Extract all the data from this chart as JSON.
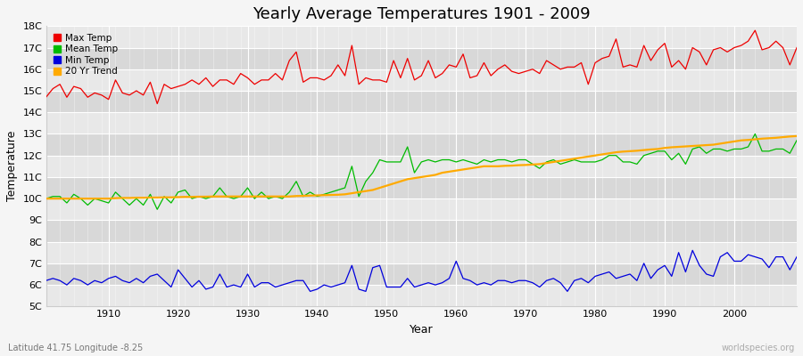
{
  "title": "Yearly Average Temperatures 1901 - 2009",
  "xlabel": "Year",
  "ylabel": "Temperature",
  "subtitle_left": "Latitude 41.75 Longitude -8.25",
  "subtitle_right": "worldspecies.org",
  "years": [
    1901,
    1902,
    1903,
    1904,
    1905,
    1906,
    1907,
    1908,
    1909,
    1910,
    1911,
    1912,
    1913,
    1914,
    1915,
    1916,
    1917,
    1918,
    1919,
    1920,
    1921,
    1922,
    1923,
    1924,
    1925,
    1926,
    1927,
    1928,
    1929,
    1930,
    1931,
    1932,
    1933,
    1934,
    1935,
    1936,
    1937,
    1938,
    1939,
    1940,
    1941,
    1942,
    1943,
    1944,
    1945,
    1946,
    1947,
    1948,
    1949,
    1950,
    1951,
    1952,
    1953,
    1954,
    1955,
    1956,
    1957,
    1958,
    1959,
    1960,
    1961,
    1962,
    1963,
    1964,
    1965,
    1966,
    1967,
    1968,
    1969,
    1970,
    1971,
    1972,
    1973,
    1974,
    1975,
    1976,
    1977,
    1978,
    1979,
    1980,
    1981,
    1982,
    1983,
    1984,
    1985,
    1986,
    1987,
    1988,
    1989,
    1990,
    1991,
    1992,
    1993,
    1994,
    1995,
    1996,
    1997,
    1998,
    1999,
    2000,
    2001,
    2002,
    2003,
    2004,
    2005,
    2006,
    2007,
    2008,
    2009
  ],
  "max_temp": [
    14.7,
    15.1,
    15.3,
    14.7,
    15.2,
    15.1,
    14.7,
    14.9,
    14.8,
    14.6,
    15.5,
    14.9,
    14.8,
    15.0,
    14.8,
    15.4,
    14.4,
    15.3,
    15.1,
    15.2,
    15.3,
    15.5,
    15.3,
    15.6,
    15.2,
    15.5,
    15.5,
    15.3,
    15.8,
    15.6,
    15.3,
    15.5,
    15.5,
    15.8,
    15.5,
    16.4,
    16.8,
    15.4,
    15.6,
    15.6,
    15.5,
    15.7,
    16.2,
    15.7,
    17.1,
    15.3,
    15.6,
    15.5,
    15.5,
    15.4,
    16.4,
    15.6,
    16.5,
    15.5,
    15.7,
    16.4,
    15.6,
    15.8,
    16.2,
    16.1,
    16.7,
    15.6,
    15.7,
    16.3,
    15.7,
    16.0,
    16.2,
    15.9,
    15.8,
    15.9,
    16.0,
    15.8,
    16.4,
    16.2,
    16.0,
    16.1,
    16.1,
    16.3,
    15.3,
    16.3,
    16.5,
    16.6,
    17.4,
    16.1,
    16.2,
    16.1,
    17.1,
    16.4,
    16.9,
    17.2,
    16.1,
    16.4,
    16.0,
    17.0,
    16.8,
    16.2,
    16.9,
    17.0,
    16.8,
    17.0,
    17.1,
    17.3,
    17.8,
    16.9,
    17.0,
    17.3,
    17.0,
    16.2,
    17.0
  ],
  "mean_temp": [
    10.0,
    10.1,
    10.1,
    9.8,
    10.2,
    10.0,
    9.7,
    10.0,
    9.9,
    9.8,
    10.3,
    10.0,
    9.7,
    10.0,
    9.7,
    10.2,
    9.5,
    10.1,
    9.8,
    10.3,
    10.4,
    10.0,
    10.1,
    10.0,
    10.1,
    10.5,
    10.1,
    10.0,
    10.1,
    10.5,
    10.0,
    10.3,
    10.0,
    10.1,
    10.0,
    10.3,
    10.8,
    10.1,
    10.3,
    10.1,
    10.2,
    10.3,
    10.4,
    10.5,
    11.5,
    10.1,
    10.8,
    11.2,
    11.8,
    11.7,
    11.7,
    11.7,
    12.4,
    11.2,
    11.7,
    11.8,
    11.7,
    11.8,
    11.8,
    11.7,
    11.8,
    11.7,
    11.6,
    11.8,
    11.7,
    11.8,
    11.8,
    11.7,
    11.8,
    11.8,
    11.6,
    11.4,
    11.7,
    11.8,
    11.6,
    11.7,
    11.8,
    11.7,
    11.7,
    11.7,
    11.8,
    12.0,
    12.0,
    11.7,
    11.7,
    11.6,
    12.0,
    12.1,
    12.2,
    12.2,
    11.8,
    12.1,
    11.6,
    12.3,
    12.4,
    12.1,
    12.3,
    12.3,
    12.2,
    12.3,
    12.3,
    12.4,
    13.0,
    12.2,
    12.2,
    12.3,
    12.3,
    12.1,
    12.7
  ],
  "min_temp": [
    6.2,
    6.3,
    6.2,
    6.0,
    6.3,
    6.2,
    6.0,
    6.2,
    6.1,
    6.3,
    6.4,
    6.2,
    6.1,
    6.3,
    6.1,
    6.4,
    6.5,
    6.2,
    5.9,
    6.7,
    6.3,
    5.9,
    6.2,
    5.8,
    5.9,
    6.5,
    5.9,
    6.0,
    5.9,
    6.5,
    5.9,
    6.1,
    6.1,
    5.9,
    6.0,
    6.1,
    6.2,
    6.2,
    5.7,
    5.8,
    6.0,
    5.9,
    6.0,
    6.1,
    6.9,
    5.8,
    5.7,
    6.8,
    6.9,
    5.9,
    5.9,
    5.9,
    6.3,
    5.9,
    6.0,
    6.1,
    6.0,
    6.1,
    6.3,
    7.1,
    6.3,
    6.2,
    6.0,
    6.1,
    6.0,
    6.2,
    6.2,
    6.1,
    6.2,
    6.2,
    6.1,
    5.9,
    6.2,
    6.3,
    6.1,
    5.7,
    6.2,
    6.3,
    6.1,
    6.4,
    6.5,
    6.6,
    6.3,
    6.4,
    6.5,
    6.2,
    7.0,
    6.3,
    6.7,
    6.9,
    6.4,
    7.5,
    6.6,
    7.6,
    6.9,
    6.5,
    6.4,
    7.3,
    7.5,
    7.1,
    7.1,
    7.4,
    7.3,
    7.2,
    6.8,
    7.3,
    7.3,
    6.7,
    7.3
  ],
  "trend_20yr": [
    10.0,
    10.0,
    10.0,
    10.0,
    10.0,
    10.0,
    10.0,
    10.0,
    10.0,
    10.0,
    10.02,
    10.03,
    10.03,
    10.04,
    10.04,
    10.05,
    10.05,
    10.06,
    10.06,
    10.07,
    10.08,
    10.08,
    10.09,
    10.09,
    10.1,
    10.1,
    10.1,
    10.1,
    10.1,
    10.1,
    10.1,
    10.1,
    10.1,
    10.1,
    10.1,
    10.1,
    10.12,
    10.13,
    10.14,
    10.15,
    10.16,
    10.17,
    10.18,
    10.2,
    10.25,
    10.3,
    10.35,
    10.4,
    10.5,
    10.6,
    10.7,
    10.8,
    10.9,
    10.95,
    11.0,
    11.05,
    11.1,
    11.2,
    11.25,
    11.3,
    11.35,
    11.4,
    11.45,
    11.5,
    11.5,
    11.5,
    11.52,
    11.53,
    11.55,
    11.56,
    11.58,
    11.6,
    11.65,
    11.7,
    11.75,
    11.8,
    11.85,
    11.9,
    11.95,
    12.0,
    12.05,
    12.1,
    12.15,
    12.18,
    12.2,
    12.22,
    12.25,
    12.28,
    12.3,
    12.35,
    12.38,
    12.4,
    12.42,
    12.44,
    12.46,
    12.48,
    12.5,
    12.55,
    12.6,
    12.65,
    12.7,
    12.72,
    12.75,
    12.78,
    12.8,
    12.82,
    12.85,
    12.88,
    12.9
  ],
  "bg_color": "#f5f5f5",
  "band_colors": [
    "#e8e8e8",
    "#d8d8d8"
  ],
  "grid_color": "#ffffff",
  "max_color": "#ee0000",
  "mean_color": "#00bb00",
  "min_color": "#0000dd",
  "trend_color": "#ffaa00",
  "ylim": [
    5,
    18
  ],
  "yticks": [
    5,
    6,
    7,
    8,
    9,
    10,
    11,
    12,
    13,
    14,
    15,
    16,
    17,
    18
  ],
  "ytick_labels": [
    "5C",
    "6C",
    "7C",
    "8C",
    "9C",
    "10C",
    "11C",
    "12C",
    "13C",
    "14C",
    "15C",
    "16C",
    "17C",
    "18C"
  ],
  "xticks": [
    1910,
    1920,
    1930,
    1940,
    1950,
    1960,
    1970,
    1980,
    1990,
    2000
  ],
  "legend_labels": [
    "Max Temp",
    "Mean Temp",
    "Min Temp",
    "20 Yr Trend"
  ],
  "legend_colors": [
    "#ee0000",
    "#00bb00",
    "#0000dd",
    "#ffaa00"
  ],
  "title_fontsize": 13,
  "axis_fontsize": 8,
  "ylabel_fontsize": 9
}
